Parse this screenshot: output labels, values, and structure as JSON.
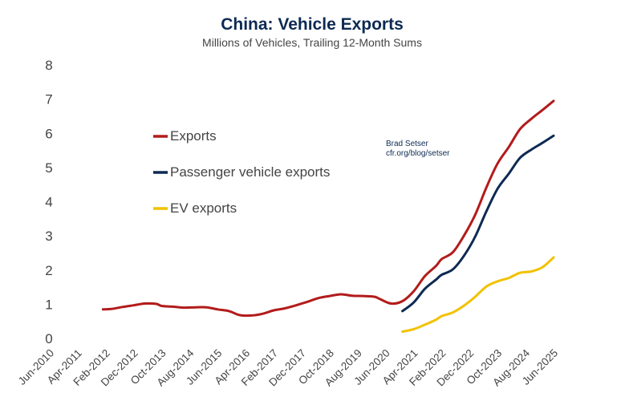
{
  "chart_data": {
    "type": "line",
    "title": "China: Vehicle Exports",
    "subtitle": "Millions of Vehicles, Trailing 12-Month Sums",
    "xlabel": "",
    "ylabel": "",
    "ylim": [
      0,
      8
    ],
    "yticks": [
      "0",
      "1",
      "2",
      "3",
      "4",
      "5",
      "6",
      "7",
      "8"
    ],
    "xlim": [
      "2010-06",
      "2025-06"
    ],
    "xticks": [
      {
        "label": "Jun-2010",
        "date": "2010-06"
      },
      {
        "label": "Apr-2011",
        "date": "2011-04"
      },
      {
        "label": "Feb-2012",
        "date": "2012-02"
      },
      {
        "label": "Dec-2012",
        "date": "2012-12"
      },
      {
        "label": "Oct-2013",
        "date": "2013-10"
      },
      {
        "label": "Aug-2014",
        "date": "2014-08"
      },
      {
        "label": "Jun-2015",
        "date": "2015-06"
      },
      {
        "label": "Apr-2016",
        "date": "2016-04"
      },
      {
        "label": "Feb-2017",
        "date": "2017-02"
      },
      {
        "label": "Dec-2017",
        "date": "2017-12"
      },
      {
        "label": "Oct-2018",
        "date": "2018-10"
      },
      {
        "label": "Aug-2019",
        "date": "2019-08"
      },
      {
        "label": "Jun-2020",
        "date": "2020-06"
      },
      {
        "label": "Apr-2021",
        "date": "2021-04"
      },
      {
        "label": "Feb-2022",
        "date": "2022-02"
      },
      {
        "label": "Dec-2022",
        "date": "2022-12"
      },
      {
        "label": "Oct-2023",
        "date": "2023-10"
      },
      {
        "label": "Aug-2024",
        "date": "2024-08"
      },
      {
        "label": "Jun-2025",
        "date": "2025-06"
      }
    ],
    "grid": false,
    "legend_position": "top-left",
    "annotation": [
      "Brad Setser",
      "cfr.org/blog/setser"
    ],
    "series": [
      {
        "name": "Exports",
        "color": "#b31b1b",
        "points": [
          [
            "2012-01",
            0.85
          ],
          [
            "2012-04",
            0.86
          ],
          [
            "2012-08",
            0.92
          ],
          [
            "2012-12",
            0.97
          ],
          [
            "2013-04",
            1.02
          ],
          [
            "2013-08",
            1.01
          ],
          [
            "2013-10",
            0.95
          ],
          [
            "2014-02",
            0.93
          ],
          [
            "2014-06",
            0.9
          ],
          [
            "2014-10",
            0.91
          ],
          [
            "2015-02",
            0.91
          ],
          [
            "2015-06",
            0.85
          ],
          [
            "2015-10",
            0.8
          ],
          [
            "2016-02",
            0.68
          ],
          [
            "2016-06",
            0.67
          ],
          [
            "2016-10",
            0.72
          ],
          [
            "2017-02",
            0.82
          ],
          [
            "2017-06",
            0.88
          ],
          [
            "2017-10",
            0.97
          ],
          [
            "2018-02",
            1.07
          ],
          [
            "2018-06",
            1.18
          ],
          [
            "2018-10",
            1.24
          ],
          [
            "2019-02",
            1.29
          ],
          [
            "2019-06",
            1.25
          ],
          [
            "2019-10",
            1.24
          ],
          [
            "2020-02",
            1.22
          ],
          [
            "2020-04",
            1.15
          ],
          [
            "2020-08",
            1.02
          ],
          [
            "2020-12",
            1.09
          ],
          [
            "2021-04",
            1.38
          ],
          [
            "2021-08",
            1.82
          ],
          [
            "2021-12",
            2.12
          ],
          [
            "2022-02",
            2.32
          ],
          [
            "2022-06",
            2.52
          ],
          [
            "2022-10",
            3.01
          ],
          [
            "2023-02",
            3.62
          ],
          [
            "2023-06",
            4.42
          ],
          [
            "2023-10",
            5.12
          ],
          [
            "2024-02",
            5.6
          ],
          [
            "2024-06",
            6.12
          ],
          [
            "2024-10",
            6.42
          ],
          [
            "2025-02",
            6.68
          ],
          [
            "2025-06",
            6.95
          ]
        ]
      },
      {
        "name": "Passenger vehicle exports",
        "color": "#0d2a52",
        "points": [
          [
            "2020-12",
            0.8
          ],
          [
            "2021-04",
            1.05
          ],
          [
            "2021-08",
            1.45
          ],
          [
            "2021-12",
            1.72
          ],
          [
            "2022-02",
            1.86
          ],
          [
            "2022-06",
            2.02
          ],
          [
            "2022-10",
            2.42
          ],
          [
            "2023-02",
            2.98
          ],
          [
            "2023-06",
            3.72
          ],
          [
            "2023-10",
            4.38
          ],
          [
            "2024-02",
            4.82
          ],
          [
            "2024-06",
            5.28
          ],
          [
            "2024-10",
            5.52
          ],
          [
            "2025-02",
            5.72
          ],
          [
            "2025-06",
            5.93
          ]
        ]
      },
      {
        "name": "EV exports",
        "color": "#f2c200",
        "points": [
          [
            "2020-12",
            0.2
          ],
          [
            "2021-04",
            0.27
          ],
          [
            "2021-08",
            0.4
          ],
          [
            "2021-12",
            0.55
          ],
          [
            "2022-02",
            0.65
          ],
          [
            "2022-06",
            0.76
          ],
          [
            "2022-10",
            0.96
          ],
          [
            "2023-02",
            1.22
          ],
          [
            "2023-06",
            1.52
          ],
          [
            "2023-10",
            1.67
          ],
          [
            "2024-02",
            1.77
          ],
          [
            "2024-06",
            1.92
          ],
          [
            "2024-10",
            1.96
          ],
          [
            "2025-02",
            2.08
          ],
          [
            "2025-06",
            2.37
          ]
        ]
      }
    ]
  }
}
